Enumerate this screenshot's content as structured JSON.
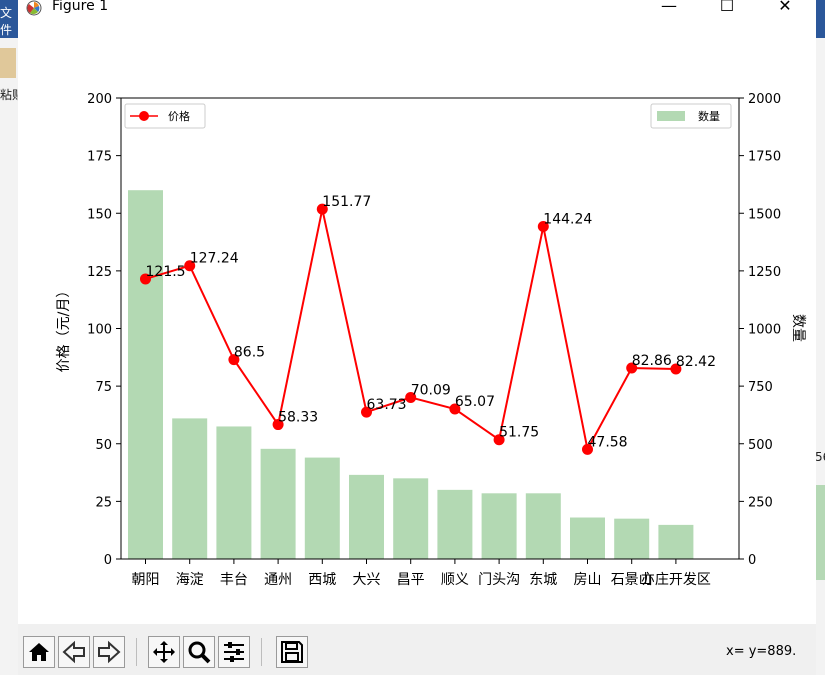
{
  "window": {
    "title": "Figure 1",
    "minimize_label": "—",
    "maximize_label": "☐",
    "close_label": "✕"
  },
  "background_app": {
    "left_top_text": "文件",
    "left_label": "粘贴",
    "right_partial_label": "56"
  },
  "toolbar": {
    "coords": "x= y=889.",
    "icons": [
      "home-icon",
      "back-icon",
      "forward-icon",
      "pan-icon",
      "zoom-icon",
      "configure-icon",
      "save-icon"
    ]
  },
  "chart_data": {
    "type": "bar",
    "categories": [
      "朝阳",
      "海淀",
      "丰台",
      "通州",
      "西城",
      "大兴",
      "昌平",
      "顺义",
      "门头沟",
      "东城",
      "房山",
      "石景山",
      "亦庄开发区"
    ],
    "xlabel": "",
    "ylabel": "价格（元/月）",
    "y2label": "数量",
    "ylim": [
      0,
      200
    ],
    "y2lim": [
      0,
      2000
    ],
    "yticks": [
      0,
      25,
      50,
      75,
      100,
      125,
      150,
      175,
      200
    ],
    "y2ticks": [
      0,
      250,
      500,
      750,
      1000,
      1250,
      1500,
      1750,
      2000
    ],
    "grid": false,
    "series": [
      {
        "name": "数量",
        "kind": "bar",
        "axis": "right",
        "color": "#b3d9b3",
        "values": [
          1600,
          610,
          575,
          478,
          440,
          365,
          350,
          300,
          285,
          285,
          180,
          175,
          148
        ]
      },
      {
        "name": "价格",
        "kind": "line",
        "axis": "left",
        "color": "#ff0000",
        "values": [
          121.5,
          127.24,
          86.5,
          58.33,
          151.77,
          63.73,
          70.09,
          65.07,
          51.75,
          144.24,
          47.58,
          82.86,
          82.42
        ],
        "labels": [
          "121.5",
          "127.24",
          "86.5",
          "58.33",
          "151.77",
          "63.73",
          "70.09",
          "65.07",
          "51.75",
          "144.24",
          "47.58",
          "82.86",
          "82.42"
        ]
      }
    ],
    "legends": [
      {
        "entries": [
          "价格"
        ],
        "placement": "top-left"
      },
      {
        "entries": [
          "数量"
        ],
        "placement": "top-right"
      }
    ]
  }
}
